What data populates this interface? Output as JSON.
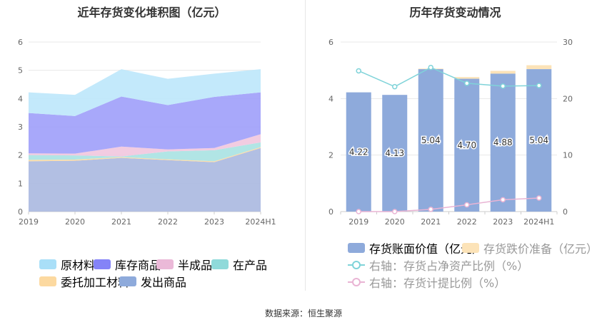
{
  "source": "数据来源：恒生聚源",
  "chart_data": [
    {
      "type": "area",
      "stacked": true,
      "title": "近年存货变化堆积图（亿元）",
      "categories": [
        "2019",
        "2020",
        "2021",
        "2022",
        "2023",
        "2024H1"
      ],
      "ylim": [
        0,
        6
      ],
      "yticks": [
        0,
        1,
        2,
        3,
        4,
        5,
        6
      ],
      "series": [
        {
          "name": "发出商品",
          "color": "#aab8e0",
          "values": [
            1.78,
            1.8,
            1.9,
            1.82,
            1.75,
            2.25
          ]
        },
        {
          "name": "委托加工材料",
          "color": "#fcd9a0",
          "values": [
            0.05,
            0.04,
            0.03,
            0.03,
            0.03,
            0.03
          ]
        },
        {
          "name": "在产品",
          "color": "#a8e2e2",
          "values": [
            0.17,
            0.15,
            0.02,
            0.28,
            0.39,
            0.17
          ]
        },
        {
          "name": "半成品",
          "color": "#f1c6de",
          "values": [
            0.06,
            0.06,
            0.35,
            0.07,
            0.08,
            0.29
          ]
        },
        {
          "name": "库存商品",
          "color": "#9e9ffa",
          "values": [
            1.43,
            1.33,
            1.77,
            1.57,
            1.81,
            1.48
          ]
        },
        {
          "name": "原材料",
          "color": "#bde7fb",
          "values": [
            0.73,
            0.75,
            0.97,
            0.93,
            0.82,
            0.82
          ]
        }
      ],
      "legend": {
        "row1": [
          "原材料",
          "库存商品",
          "半成品",
          "在产品"
        ],
        "row2": [
          "委托加工材料",
          "发出商品"
        ],
        "colors": {
          "原材料": "#a9dff8",
          "库存商品": "#8483f7",
          "半成品": "#ebb9d8",
          "在产品": "#8fdada",
          "委托加工材料": "#fcd9a0",
          "发出商品": "#8eaadb"
        }
      }
    },
    {
      "type": "bar",
      "title": "历年存货变动情况",
      "categories": [
        "2019",
        "2020",
        "2021",
        "2022",
        "2023",
        "2024H1"
      ],
      "ylim": [
        0,
        6
      ],
      "yticks": [
        0,
        2,
        4,
        6
      ],
      "y2lim": [
        0,
        30
      ],
      "y2ticks": [
        0,
        10,
        20,
        30
      ],
      "bars": {
        "name": "存货账面价值（亿元）",
        "color": "#8eaadb",
        "values": [
          4.22,
          4.13,
          5.04,
          4.7,
          4.88,
          5.04
        ],
        "labels": [
          "4.22",
          "4.13",
          "5.04",
          "4.70",
          "4.88",
          "5.04"
        ]
      },
      "stack_top": {
        "name": "存货跌价准备（亿元）",
        "color": "#fce3b8",
        "values": [
          0,
          0,
          0.02,
          0.06,
          0.1,
          0.14
        ]
      },
      "lines": [
        {
          "name": "右轴：存货占净资产比例（%）",
          "color": "#7fd3d9",
          "axis": "right",
          "values": [
            24.9,
            22.1,
            25.5,
            22.7,
            22.2,
            22.3
          ]
        },
        {
          "name": "右轴：存货计提比例（%）",
          "color": "#e9b4d4",
          "axis": "right",
          "values": [
            0.0,
            0.0,
            0.4,
            1.2,
            2.1,
            2.4
          ]
        }
      ]
    }
  ]
}
